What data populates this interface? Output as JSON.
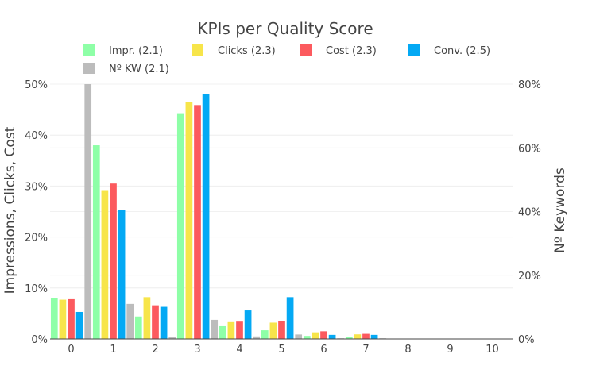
{
  "chart_data": {
    "type": "bar",
    "title": "KPIs per Quality Score",
    "categories": [
      "0",
      "1",
      "2",
      "3",
      "4",
      "5",
      "6",
      "7",
      "8",
      "9",
      "10"
    ],
    "y_left": {
      "label": "Impressions, Clicks, Cost",
      "range": [
        0,
        50
      ],
      "ticks": [
        "0%",
        "10%",
        "20%",
        "30%",
        "40%",
        "50%"
      ],
      "tick_values": [
        0,
        10,
        20,
        30,
        40,
        50
      ]
    },
    "y_right": {
      "label": "Nº Keywords",
      "range": [
        0,
        80
      ],
      "ticks": [
        "0%",
        "20%",
        "40%",
        "60%",
        "80%"
      ],
      "tick_values": [
        0,
        20,
        40,
        60,
        80
      ]
    },
    "grid": true,
    "legend_position": "top",
    "series": [
      {
        "name": "Impr. (2.1)",
        "axis": "left",
        "color": "#8effa7",
        "values": [
          8.0,
          38.0,
          4.4,
          44.3,
          2.5,
          1.7,
          0.6,
          0.4,
          0,
          0,
          0
        ]
      },
      {
        "name": "Clicks (2.3)",
        "axis": "left",
        "color": "#f7e54a",
        "values": [
          7.7,
          29.2,
          8.2,
          46.5,
          3.3,
          3.2,
          1.3,
          0.9,
          0,
          0,
          0
        ]
      },
      {
        "name": "Cost (2.3)",
        "axis": "left",
        "color": "#fc5a5e",
        "values": [
          7.8,
          30.5,
          6.6,
          45.9,
          3.4,
          3.5,
          1.5,
          1.0,
          0,
          0,
          0
        ]
      },
      {
        "name": "Conv. (2.5)",
        "axis": "left",
        "color": "#04a9f4",
        "values": [
          5.3,
          25.3,
          6.3,
          48.0,
          5.6,
          8.2,
          0.8,
          0.8,
          0,
          0,
          0
        ]
      },
      {
        "name": "Nº KW (2.1)",
        "axis": "right",
        "color": "#bcbcbc",
        "values": [
          80.0,
          11.0,
          0.5,
          6.0,
          0.8,
          1.4,
          0.2,
          0.2,
          0,
          0,
          0
        ]
      }
    ]
  }
}
